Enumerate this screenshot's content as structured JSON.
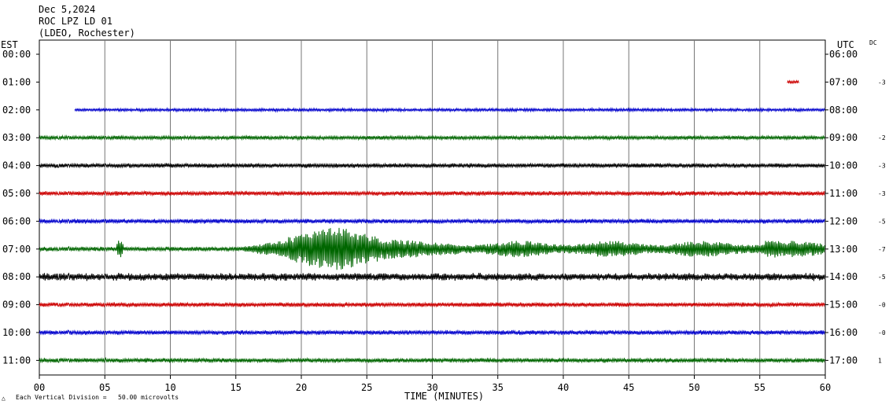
{
  "header": {
    "date": "Dec 5,2024",
    "station": "ROC LPZ LD 01",
    "site": "(LDEO, Rochester)"
  },
  "left_axis_label": "EST",
  "right_axis_label": "UTC",
  "dc_label": "DC",
  "footer": {
    "scale_text": "Each Vertical Division =   50.00 microvolts",
    "scale_mark": "△"
  },
  "chart_data": {
    "type": "line",
    "title": "ROC LPZ LD 01",
    "xlabel": "TIME (MINUTES)",
    "xlim": [
      0,
      60
    ],
    "x_ticks": [
      "00",
      "05",
      "10",
      "15",
      "20",
      "25",
      "30",
      "35",
      "40",
      "45",
      "50",
      "55",
      "60"
    ],
    "grid": true,
    "rows": [
      {
        "est": "00:00",
        "utc": "06:00",
        "dc": "",
        "color": "#cc0000",
        "start": 60,
        "end": 60,
        "amp": 0,
        "noise": "none"
      },
      {
        "est": "01:00",
        "utc": "07:00",
        "dc": "-3",
        "color": "#cc0000",
        "start": 57.1,
        "end": 58,
        "amp": 2,
        "noise": "low"
      },
      {
        "est": "02:00",
        "utc": "08:00",
        "dc": "",
        "color": "#0000cc",
        "start": 2.7,
        "end": 60,
        "amp": 2,
        "noise": "low"
      },
      {
        "est": "03:00",
        "utc": "09:00",
        "dc": "-2",
        "color": "#006600",
        "start": 0,
        "end": 60,
        "amp": 2.5,
        "noise": "low"
      },
      {
        "est": "04:00",
        "utc": "10:00",
        "dc": "-3",
        "color": "#000000",
        "start": 0,
        "end": 60,
        "amp": 3,
        "noise": "low"
      },
      {
        "est": "05:00",
        "utc": "11:00",
        "dc": "-3",
        "color": "#cc0000",
        "start": 0,
        "end": 60,
        "amp": 3,
        "noise": "low"
      },
      {
        "est": "06:00",
        "utc": "12:00",
        "dc": "-5",
        "color": "#0000cc",
        "start": 0,
        "end": 60,
        "amp": 3,
        "noise": "low"
      },
      {
        "est": "07:00",
        "utc": "13:00",
        "dc": "-7",
        "color": "#006600",
        "start": 0,
        "end": 60,
        "amp": 3,
        "noise": "quake",
        "event_minute": 15.5,
        "peak_minute": 22.5
      },
      {
        "est": "08:00",
        "utc": "14:00",
        "dc": "-5",
        "color": "#000000",
        "start": 0,
        "end": 60,
        "amp": 5,
        "noise": "medium"
      },
      {
        "est": "09:00",
        "utc": "15:00",
        "dc": "-0",
        "color": "#cc0000",
        "start": 0,
        "end": 60,
        "amp": 3,
        "noise": "low"
      },
      {
        "est": "10:00",
        "utc": "16:00",
        "dc": "-0",
        "color": "#0000cc",
        "start": 0,
        "end": 60,
        "amp": 3,
        "noise": "low"
      },
      {
        "est": "11:00",
        "utc": "17:00",
        "dc": "1",
        "color": "#006600",
        "start": 0,
        "end": 60,
        "amp": 3,
        "noise": "low"
      }
    ]
  }
}
